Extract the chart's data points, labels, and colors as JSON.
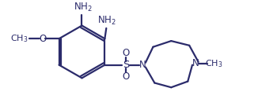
{
  "bg_color": "#ffffff",
  "line_color": "#2b2b6b",
  "text_color": "#2b2b6b",
  "bond_lw": 1.6,
  "font_size": 8.5,
  "nh2_label": "NH$_2$",
  "s_label": "S",
  "n_label": "N",
  "o_up_label": "O",
  "o_down_label": "O",
  "methoxy_o_label": "O",
  "ch3_label": "CH$_3$",
  "methyl_label": "CH$_3$",
  "figw": 3.5,
  "figh": 1.26,
  "dpi": 100
}
